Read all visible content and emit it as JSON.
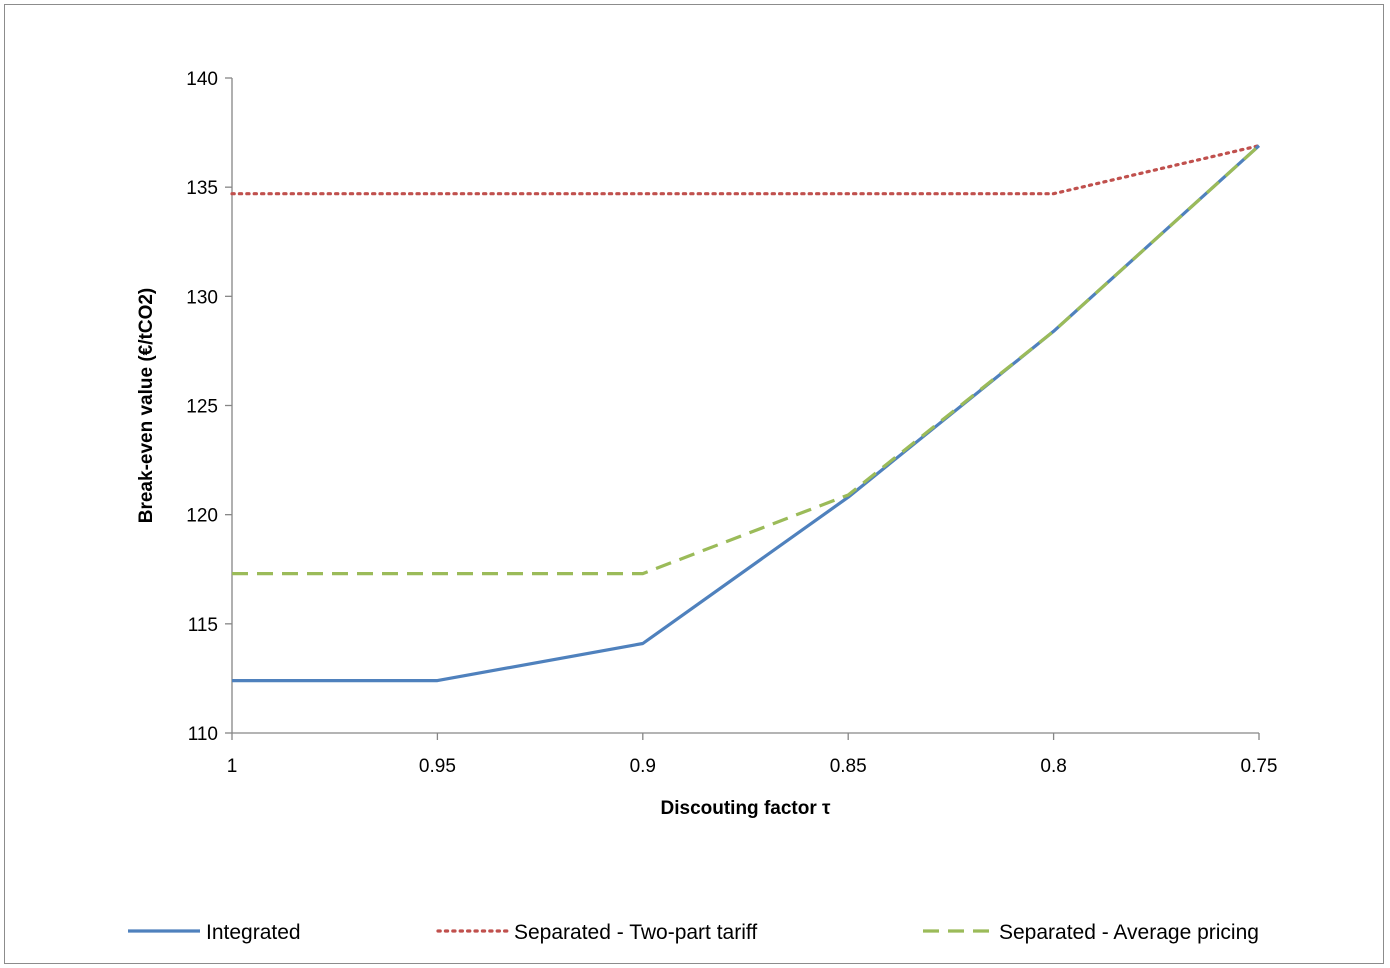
{
  "chart_data": {
    "type": "line",
    "title": "",
    "xlabel": "Discouting factor τ",
    "ylabel": "Break-even value (€/tCO2)",
    "categories": [
      "1",
      "0.95",
      "0.9",
      "0.85",
      "0.8",
      "0.75"
    ],
    "ylim": [
      110,
      140
    ],
    "yticks": [
      110,
      115,
      120,
      125,
      130,
      135,
      140
    ],
    "grid": false,
    "legend_position": "bottom",
    "series": [
      {
        "name": "Integrated",
        "values": [
          112.4,
          112.4,
          114.1,
          120.8,
          128.4,
          136.9
        ],
        "color": "#4F81BD",
        "dash": "solid"
      },
      {
        "name": "Separated - Two-part tariff",
        "values": [
          134.7,
          134.7,
          134.7,
          134.7,
          134.7,
          136.9
        ],
        "color": "#C0504D",
        "dash": "dotted"
      },
      {
        "name": "Separated - Average pricing",
        "values": [
          117.3,
          117.3,
          117.3,
          120.9,
          128.4,
          136.9
        ],
        "color": "#9BBB59",
        "dash": "dashed"
      }
    ]
  }
}
